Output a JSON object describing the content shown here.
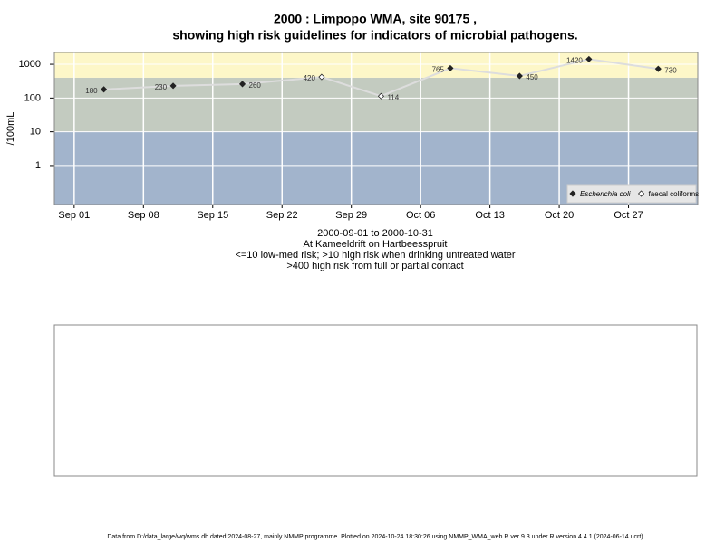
{
  "chart_data": {
    "type": "line",
    "title": "2000 : Limpopo WMA, site 90175 ,",
    "subtitle": "showing high risk guidelines for indicators of microbial pathogens.",
    "ylabel": "/100mL",
    "notes": [
      "2000-09-01 to 2000-10-31",
      "At Kameeldrift on Hartbeesspruit",
      "<=10 low-med risk; >10 high risk when drinking untreated water",
      ">400 high risk from full or partial contact"
    ],
    "footer": "Data from D:/data_large/wq/wms.db dated 2024-08-27, mainly NMMP programme. Plotted on 2024-10-24 18:30:26 using NMMP_WMA_web.R ver 9.3 under R version 4.4.1 (2024-06-14 ucrt)",
    "x": [
      "2000-09-04",
      "2000-09-11",
      "2000-09-18",
      "2000-09-26",
      "2000-10-02",
      "2000-10-09",
      "2000-10-16",
      "2000-10-23",
      "2000-10-30"
    ],
    "values": [
      180,
      230,
      260,
      420,
      114,
      765,
      450,
      1420,
      730
    ],
    "indicator": [
      "Escherichia coli",
      "Escherichia coli",
      "Escherichia coli",
      "faecal coliforms",
      "faecal coliforms",
      "Escherichia coli",
      "Escherichia coli",
      "Escherichia coli",
      "Escherichia coli"
    ],
    "series": [
      {
        "name": "Escherichia coli",
        "marker": "filled",
        "color": "#222222"
      },
      {
        "name": "faecal coliforms",
        "marker": "open",
        "color": "#222222"
      }
    ],
    "line_color": "#dddddd",
    "bands": [
      {
        "to": 10,
        "color": "#a2b4cc"
      },
      {
        "to": 400,
        "color": "#c3cbc0"
      },
      {
        "color": "#fdf7c8"
      }
    ],
    "log_y": true,
    "ylim": [
      0.07,
      2240
    ],
    "yticks": [
      1,
      10,
      100,
      1000
    ],
    "xlim": [
      "2000-08-30",
      "2000-11-03"
    ],
    "xticks": [
      {
        "value": "2000-09-01",
        "label": "Sep 01"
      },
      {
        "value": "2000-09-08",
        "label": "Sep 08"
      },
      {
        "value": "2000-09-15",
        "label": "Sep 15"
      },
      {
        "value": "2000-09-22",
        "label": "Sep 22"
      },
      {
        "value": "2000-09-29",
        "label": "Sep 29"
      },
      {
        "value": "2000-10-06",
        "label": "Oct 06"
      },
      {
        "value": "2000-10-13",
        "label": "Oct 13"
      },
      {
        "value": "2000-10-20",
        "label": "Oct 20"
      },
      {
        "value": "2000-10-27",
        "label": "Oct 27"
      }
    ],
    "grid": true,
    "legend": "bottom-right"
  }
}
